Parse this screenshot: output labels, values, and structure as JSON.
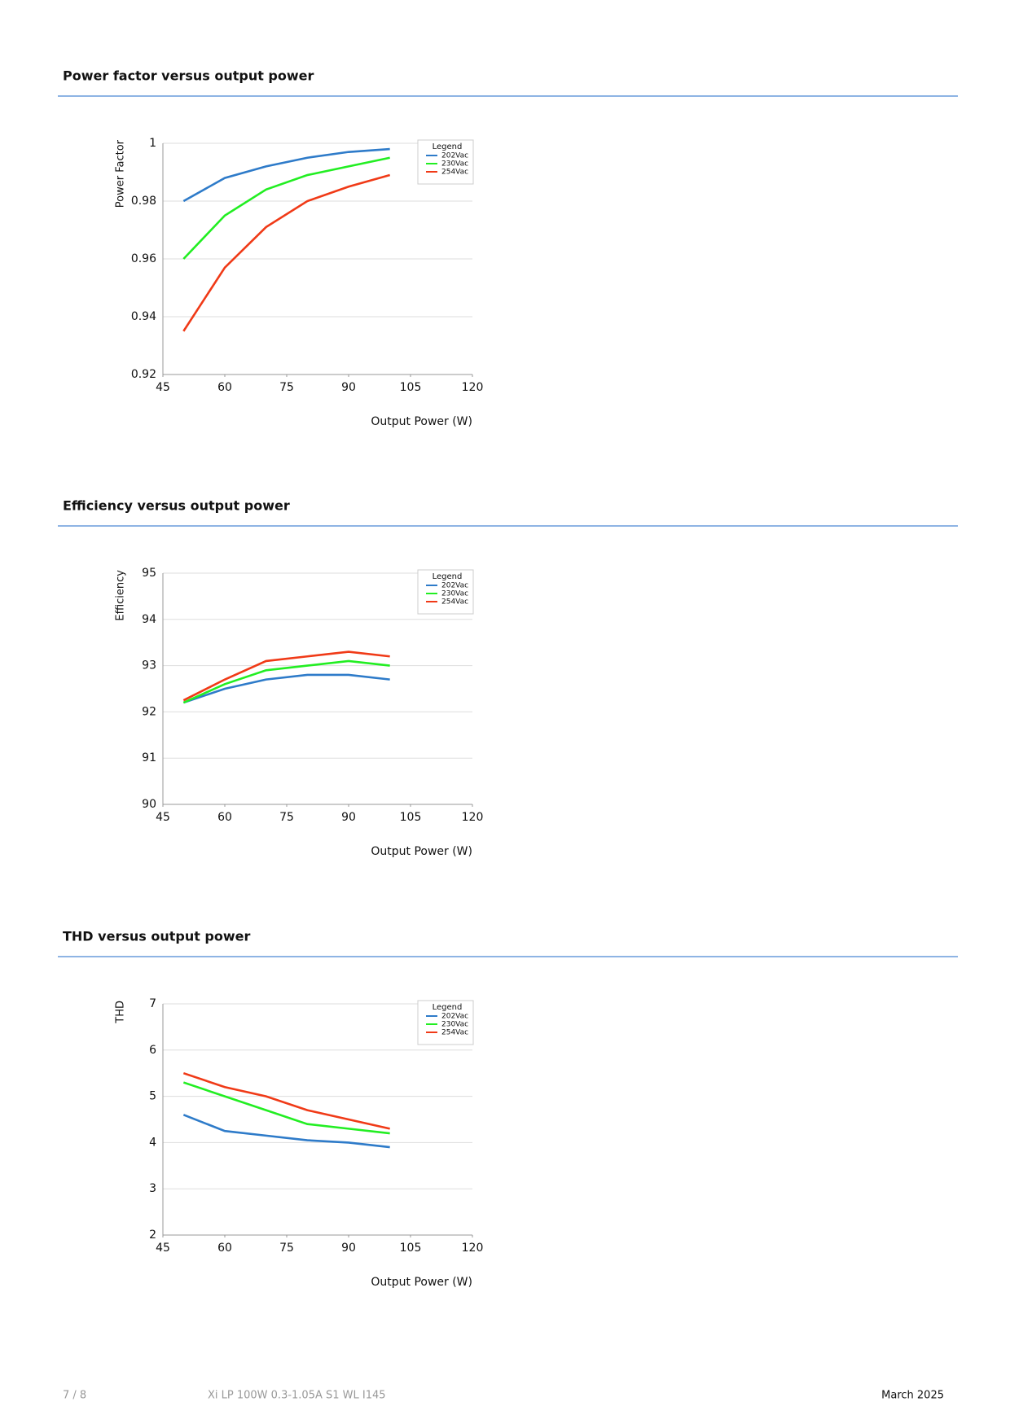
{
  "chart_data": [
    {
      "type": "line",
      "title": "Power factor versus output power",
      "x_label": "Output Power (W)",
      "y_label": "Power Factor",
      "legend_title": "Legend",
      "legend": "upper right",
      "grid": true,
      "x": [
        50,
        60,
        70,
        80,
        90,
        100
      ],
      "xlim": [
        45,
        120
      ],
      "xticks": [
        45,
        60,
        75,
        90,
        105,
        120
      ],
      "ylim": [
        0.92,
        1
      ],
      "yticks": [
        0.92,
        0.94,
        0.96,
        0.98,
        1
      ],
      "series": [
        {
          "name": "202Vac",
          "color": "#2e7bc9",
          "values": [
            0.98,
            0.988,
            0.992,
            0.995,
            0.997,
            0.998
          ]
        },
        {
          "name": "230Vac",
          "color": "#22ee22",
          "values": [
            0.96,
            0.975,
            0.984,
            0.989,
            0.992,
            0.995
          ]
        },
        {
          "name": "254Vac",
          "color": "#f03a17",
          "values": [
            0.935,
            0.957,
            0.971,
            0.98,
            0.985,
            0.989
          ]
        }
      ]
    },
    {
      "type": "line",
      "title": "Efficiency versus output power",
      "x_label": "Output Power (W)",
      "y_label": "Efficiency",
      "legend_title": "Legend",
      "legend": "upper right",
      "grid": true,
      "x": [
        50,
        60,
        70,
        80,
        90,
        100
      ],
      "xlim": [
        45,
        120
      ],
      "xticks": [
        45,
        60,
        75,
        90,
        105,
        120
      ],
      "ylim": [
        90,
        95
      ],
      "yticks": [
        90,
        91,
        92,
        93,
        94,
        95
      ],
      "series": [
        {
          "name": "202Vac",
          "color": "#2e7bc9",
          "values": [
            92.2,
            92.5,
            92.7,
            92.8,
            92.8,
            92.7
          ]
        },
        {
          "name": "230Vac",
          "color": "#22ee22",
          "values": [
            92.2,
            92.6,
            92.9,
            93.0,
            93.1,
            93.0
          ]
        },
        {
          "name": "254Vac",
          "color": "#f03a17",
          "values": [
            92.25,
            92.7,
            93.1,
            93.2,
            93.3,
            93.2
          ]
        }
      ]
    },
    {
      "type": "line",
      "title": "THD versus output power",
      "x_label": "Output Power (W)",
      "y_label": "THD",
      "legend_title": "Legend",
      "legend": "upper right",
      "grid": true,
      "x": [
        50,
        60,
        70,
        80,
        90,
        100
      ],
      "xlim": [
        45,
        120
      ],
      "xticks": [
        45,
        60,
        75,
        90,
        105,
        120
      ],
      "ylim": [
        2,
        7
      ],
      "yticks": [
        2,
        3,
        4,
        5,
        6,
        7
      ],
      "series": [
        {
          "name": "202Vac",
          "color": "#2e7bc9",
          "values": [
            4.6,
            4.25,
            4.15,
            4.05,
            4.0,
            3.9
          ]
        },
        {
          "name": "230Vac",
          "color": "#22ee22",
          "values": [
            5.3,
            5.0,
            4.7,
            4.4,
            4.3,
            4.2
          ]
        },
        {
          "name": "254Vac",
          "color": "#f03a17",
          "values": [
            5.5,
            5.2,
            5.0,
            4.7,
            4.5,
            4.3
          ]
        }
      ]
    }
  ],
  "footer": {
    "page": "7 / 8",
    "product": "Xi LP 100W 0.3-1.05A S1 WL I145",
    "date": "March 2025"
  }
}
